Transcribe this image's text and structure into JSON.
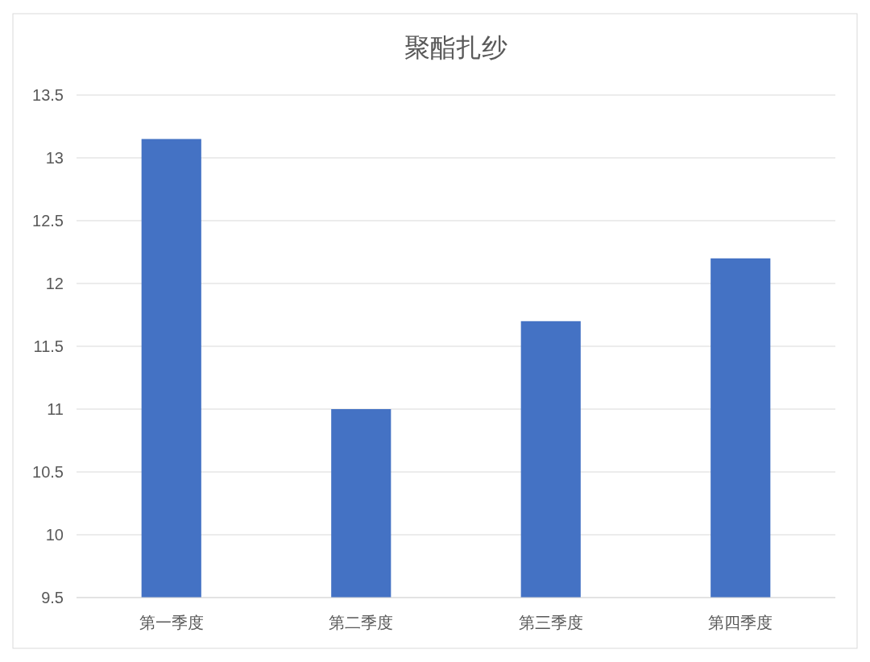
{
  "chart_data": {
    "type": "bar",
    "title": "聚酯扎纱",
    "categories": [
      "第一季度",
      "第二季度",
      "第三季度",
      "第四季度"
    ],
    "values": [
      13.15,
      11.0,
      11.7,
      12.2
    ],
    "color": "#4472c4",
    "ylim": [
      9.5,
      13.5
    ],
    "yticks": [
      9.5,
      10,
      10.5,
      11,
      11.5,
      12,
      12.5,
      13,
      13.5
    ],
    "grid": "y"
  }
}
